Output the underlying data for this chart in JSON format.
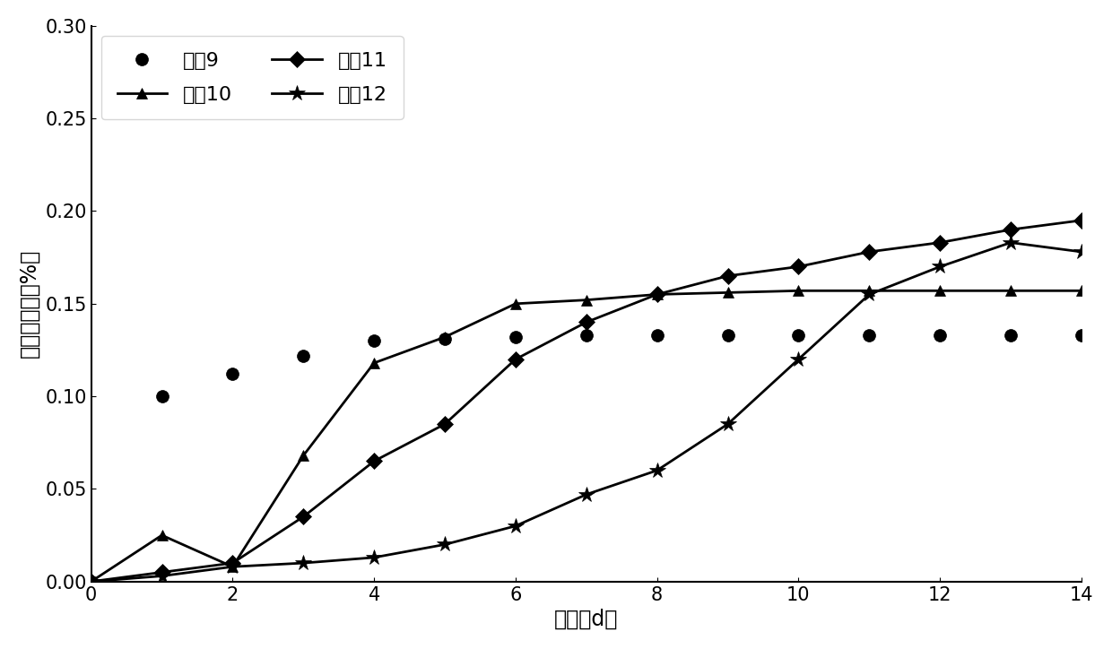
{
  "title": "",
  "xlabel": "龄期（d）",
  "ylabel": "限制膨胀率（%）",
  "xlim": [
    0,
    14
  ],
  "ylim": [
    0,
    0.3
  ],
  "yticks": [
    0.0,
    0.05,
    0.1,
    0.15,
    0.2,
    0.25,
    0.3
  ],
  "xticks": [
    0,
    2,
    4,
    6,
    8,
    10,
    12,
    14
  ],
  "series": [
    {
      "label": "实例9",
      "x": [
        0,
        1,
        2,
        3,
        4,
        5,
        6,
        7,
        8,
        9,
        10,
        11,
        12,
        13,
        14
      ],
      "y": [
        0.0,
        0.1,
        0.112,
        0.122,
        0.13,
        0.131,
        0.132,
        0.133,
        0.133,
        0.133,
        0.133,
        0.133,
        0.133,
        0.133,
        0.133
      ],
      "marker": "o",
      "linestyle": "none",
      "color": "#000000",
      "markersize": 10,
      "linewidth": 0
    },
    {
      "label": "实例10",
      "x": [
        0,
        1,
        2,
        3,
        4,
        5,
        6,
        7,
        8,
        9,
        10,
        11,
        12,
        13,
        14
      ],
      "y": [
        0.0,
        0.025,
        0.008,
        0.068,
        0.118,
        0.132,
        0.15,
        0.152,
        0.155,
        0.156,
        0.157,
        0.157,
        0.157,
        0.157,
        0.157
      ],
      "marker": "^",
      "linestyle": "-",
      "color": "#000000",
      "markersize": 9,
      "linewidth": 2.0
    },
    {
      "label": "实例11",
      "x": [
        0,
        1,
        2,
        3,
        4,
        5,
        6,
        7,
        8,
        9,
        10,
        11,
        12,
        13,
        14
      ],
      "y": [
        0.0,
        0.005,
        0.01,
        0.035,
        0.065,
        0.085,
        0.12,
        0.14,
        0.155,
        0.165,
        0.17,
        0.178,
        0.183,
        0.19,
        0.195
      ],
      "marker": "D",
      "linestyle": "-",
      "color": "#000000",
      "markersize": 9,
      "linewidth": 2.0
    },
    {
      "label": "实例12",
      "x": [
        0,
        1,
        2,
        3,
        4,
        5,
        6,
        7,
        8,
        9,
        10,
        11,
        12,
        13,
        14
      ],
      "y": [
        0.0,
        0.003,
        0.008,
        0.01,
        0.013,
        0.02,
        0.03,
        0.047,
        0.06,
        0.085,
        0.12,
        0.155,
        0.17,
        0.183,
        0.178
      ],
      "marker": "*",
      "linestyle": "-",
      "color": "#000000",
      "markersize": 13,
      "linewidth": 2.0
    }
  ],
  "legend": {
    "loc": "upper left",
    "fontsize": 16,
    "ncol": 2,
    "frameon": true
  },
  "background_color": "#ffffff",
  "tick_fontsize": 15,
  "label_fontsize": 17
}
